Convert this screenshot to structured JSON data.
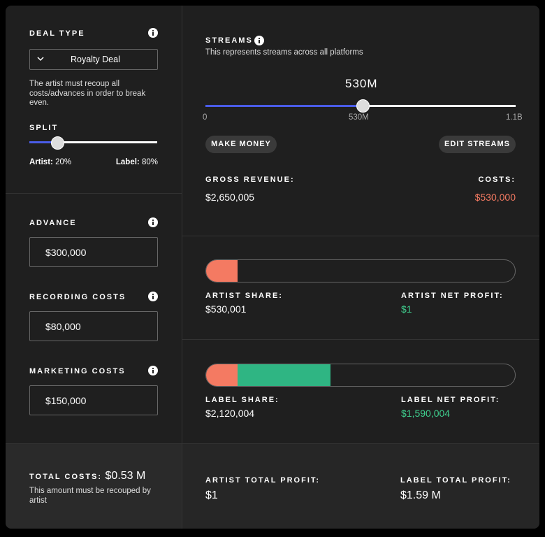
{
  "deal_type": {
    "label": "DEAL TYPE",
    "selected": "Royalty Deal",
    "description": "The artist must recoup all costs/advances in order to break even."
  },
  "split": {
    "label": "SPLIT",
    "artist_label": "Artist:",
    "artist_value": "20%",
    "label_label": "Label:",
    "label_value": "80%"
  },
  "inputs": [
    {
      "label": "ADVANCE",
      "value": "$300,000"
    },
    {
      "label": "RECORDING COSTS",
      "value": "$80,000"
    },
    {
      "label": "MARKETING COSTS",
      "value": "$150,000"
    }
  ],
  "total_costs": {
    "label": "TOTAL COSTS:",
    "value": "$0.53 M",
    "note": "This amount must be recouped by artist"
  },
  "streams": {
    "label": "STREAMS",
    "description": "This represents streams across all platforms",
    "current": "530M",
    "min": "0",
    "mid": "530M",
    "max": "1.1B"
  },
  "buttons": [
    "MAKE MONEY",
    "EDIT STREAMS"
  ],
  "gross_revenue": {
    "label": "GROSS REVENUE:",
    "value": "$2,650,005"
  },
  "costs": {
    "label": "COSTS:",
    "value": "$530,000"
  },
  "artist_share": {
    "label": "ARTIST SHARE:",
    "value": "$530,001"
  },
  "artist_net_profit": {
    "label": "ARTIST NET PROFIT:",
    "value": "$1"
  },
  "label_share": {
    "label": "LABEL SHARE:",
    "value": "$2,120,004"
  },
  "label_net_profit": {
    "label": "LABEL NET PROFIT:",
    "value": "$1,590,004"
  },
  "artist_total_profit": {
    "label": "ARTIST TOTAL PROFIT:",
    "value": "$1"
  },
  "label_total_profit": {
    "label": "LABEL TOTAL PROFIT:",
    "value": "$1.59 M"
  }
}
